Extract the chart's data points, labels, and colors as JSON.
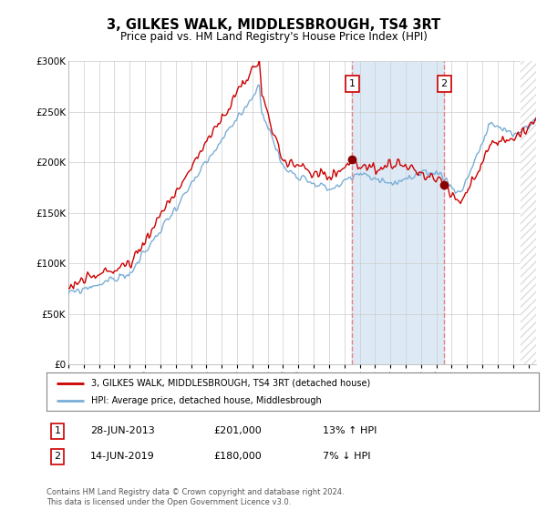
{
  "title": "3, GILKES WALK, MIDDLESBROUGH, TS4 3RT",
  "subtitle": "Price paid vs. HM Land Registry's House Price Index (HPI)",
  "legend_line1": "3, GILKES WALK, MIDDLESBROUGH, TS4 3RT (detached house)",
  "legend_line2": "HPI: Average price, detached house, Middlesbrough",
  "transaction1_date": "28-JUN-2013",
  "transaction1_price": "£201,000",
  "transaction1_hpi": "13% ↑ HPI",
  "transaction1_year": 2013.5,
  "transaction1_value": 201000,
  "transaction2_date": "14-JUN-2019",
  "transaction2_price": "£180,000",
  "transaction2_hpi": "7% ↓ HPI",
  "transaction2_year": 2019.5,
  "transaction2_value": 180000,
  "footer": "Contains HM Land Registry data © Crown copyright and database right 2024.\nThis data is licensed under the Open Government Licence v3.0.",
  "hpi_color": "#7aaed6",
  "hpi_fill_color": "#ddeaf5",
  "price_color": "#cc0000",
  "dot_color": "#8b0000",
  "dashed_line_color": "#e88080",
  "span_color": "#ddeaf5",
  "ylim": [
    0,
    300000
  ],
  "xlim_start": 1995,
  "xlim_end": 2025.5,
  "background_color": "#ffffff",
  "plot_bg_color": "#ffffff",
  "grid_color": "#cccccc",
  "hatch_color": "#bbbbbb"
}
